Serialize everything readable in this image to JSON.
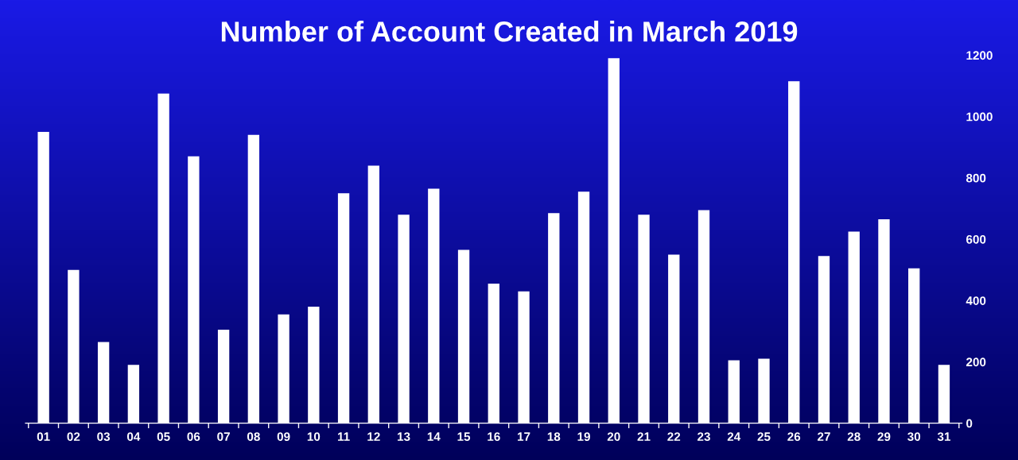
{
  "chart_data": {
    "type": "bar",
    "title": "Number of Account Created in March 2019",
    "categories": [
      "01",
      "02",
      "03",
      "04",
      "05",
      "06",
      "07",
      "08",
      "09",
      "10",
      "11",
      "12",
      "13",
      "14",
      "15",
      "16",
      "17",
      "18",
      "19",
      "20",
      "21",
      "22",
      "23",
      "24",
      "25",
      "26",
      "27",
      "28",
      "29",
      "30",
      "31"
    ],
    "values": [
      950,
      500,
      265,
      190,
      1075,
      870,
      305,
      940,
      355,
      380,
      750,
      840,
      680,
      765,
      565,
      455,
      430,
      685,
      755,
      1190,
      680,
      550,
      695,
      205,
      210,
      1115,
      545,
      625,
      665,
      505,
      190
    ],
    "color": "#ffffff",
    "ylim": [
      0,
      1200
    ],
    "yticks": [
      0,
      200,
      400,
      600,
      800,
      1000,
      1200
    ],
    "grid": false
  }
}
